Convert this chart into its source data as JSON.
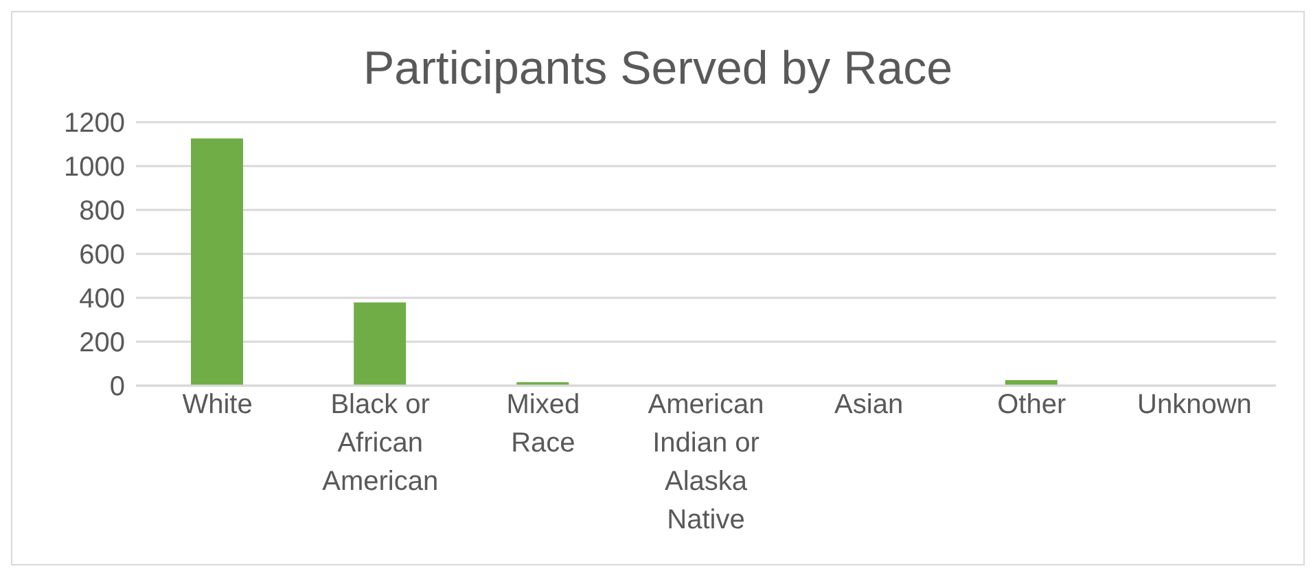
{
  "chart_data": {
    "type": "bar",
    "title": "Participants Served by Race",
    "categories": [
      "White",
      "Black or African American",
      "Mixed Race",
      "American Indian or Alaska Native",
      "Asian",
      "Other",
      "Unknown"
    ],
    "values": [
      1126,
      379,
      16,
      null,
      null,
      25,
      null
    ],
    "color": "#70ad47",
    "ylim": [
      0,
      1200
    ],
    "yticks": [
      0,
      200,
      400,
      600,
      800,
      1000,
      1200
    ],
    "grid": "y",
    "legend": false
  }
}
